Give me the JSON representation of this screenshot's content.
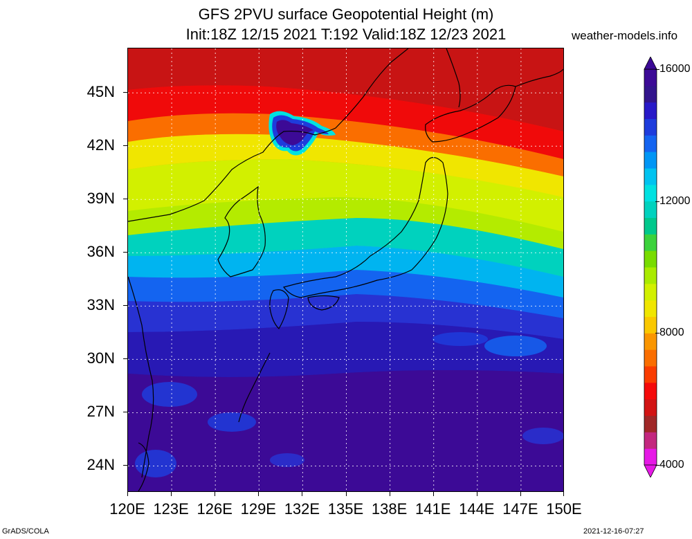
{
  "title": {
    "line1": "GFS 2PVU surface Geopotential Height (m)",
    "line2": "Init:18Z 12/15 2021 T:192 Valid:18Z 12/23 2021"
  },
  "source": "weather-models.info",
  "axes": {
    "lat_labels": [
      "45N",
      "42N",
      "39N",
      "36N",
      "33N",
      "30N",
      "27N",
      "24N"
    ],
    "lat_values": [
      45,
      42,
      39,
      36,
      33,
      30,
      27,
      24
    ],
    "lon_labels": [
      "120E",
      "123E",
      "126E",
      "129E",
      "132E",
      "135E",
      "138E",
      "141E",
      "144E",
      "147E",
      "150E"
    ],
    "lon_values": [
      120,
      123,
      126,
      129,
      132,
      135,
      138,
      141,
      144,
      147,
      150
    ],
    "lat_range": [
      22.5,
      47.5
    ],
    "lon_range": [
      120,
      150
    ],
    "gridlines": true
  },
  "colorbar": {
    "labels": [
      "16000",
      "12000",
      "8000",
      "4000"
    ],
    "values": [
      16000,
      12000,
      8000,
      4000
    ],
    "range": [
      4000,
      16000
    ],
    "colors": [
      "#e619e6",
      "#c3287f",
      "#a02828",
      "#d21414",
      "#f50a0a",
      "#fa3c00",
      "#fa6e00",
      "#fa9600",
      "#fac800",
      "#f0e600",
      "#d2f000",
      "#aaeb00",
      "#78dc00",
      "#3cd23c",
      "#00c88c",
      "#00d2be",
      "#00e1e1",
      "#00c3f0",
      "#0096f5",
      "#1464f0",
      "#1e3cdc",
      "#2819c8",
      "#32148c",
      "#3c0a96"
    ]
  },
  "footer": {
    "left": "GrADS/COLA",
    "right": "2021-12-16-07:27"
  }
}
